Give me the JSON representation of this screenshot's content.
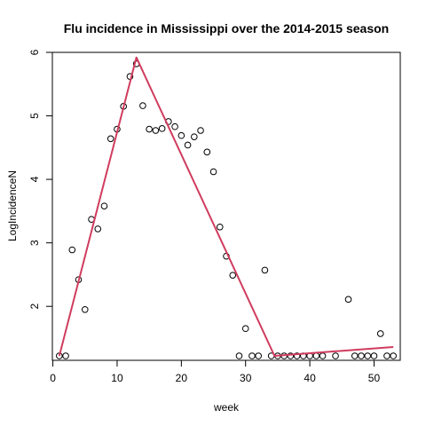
{
  "chart_data": {
    "type": "scatter",
    "title": "Flu incidence in Mississippi over the 2014-2015 season",
    "xlabel": "week",
    "ylabel": "LogIncidenceN",
    "xlim": [
      -0.08,
      54.08
    ],
    "ylim": [
      1.15,
      6.0
    ],
    "x_ticks": [
      0,
      10,
      20,
      30,
      40,
      50
    ],
    "y_ticks": [
      2,
      3,
      4,
      5,
      6
    ],
    "grid": false,
    "legend": "none",
    "colors": {
      "points": "#000000",
      "fit_line": "#d03c5e"
    },
    "points": {
      "x": [
        1,
        2,
        3,
        4,
        5,
        6,
        7,
        8,
        9,
        10,
        11,
        12,
        13,
        14,
        15,
        16,
        17,
        18,
        19,
        20,
        21,
        22,
        23,
        24,
        25,
        26,
        27,
        28,
        29,
        30,
        31,
        32,
        33,
        34,
        35,
        36,
        37,
        38,
        39,
        40,
        41,
        42,
        44,
        46,
        47,
        48,
        49,
        50,
        51,
        52,
        53
      ],
      "y": [
        1.22,
        1.22,
        2.89,
        2.42,
        1.95,
        3.37,
        3.22,
        3.58,
        4.64,
        4.79,
        5.15,
        5.62,
        5.82,
        5.16,
        4.79,
        4.77,
        4.8,
        4.91,
        4.83,
        4.69,
        4.54,
        4.67,
        4.77,
        4.43,
        4.12,
        3.25,
        2.79,
        2.49,
        1.22,
        1.65,
        1.22,
        1.22,
        2.57,
        1.22,
        1.22,
        1.22,
        1.22,
        1.22,
        1.22,
        1.22,
        1.22,
        1.22,
        1.22,
        2.11,
        1.22,
        1.22,
        1.22,
        1.22,
        1.57,
        1.22,
        1.22
      ]
    },
    "fit_line": {
      "x": [
        1,
        13,
        34.5,
        53
      ],
      "y": [
        1.22,
        5.92,
        1.22,
        1.36
      ]
    }
  }
}
